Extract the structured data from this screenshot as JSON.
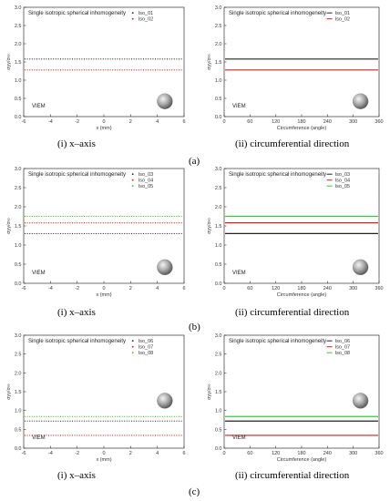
{
  "panels": [
    {
      "label": "(a)",
      "caption_i": "(i) x–axis",
      "caption_ii": "(ii) circumferential direction"
    },
    {
      "label": "(b)",
      "caption_i": "(i) x–axis",
      "caption_ii": "(ii) circumferential direction"
    },
    {
      "label": "(c)",
      "caption_i": "(i) x–axis",
      "caption_ii": "(ii) circumferential direction"
    }
  ],
  "colors": {
    "black": "#222222",
    "red": "#cc2222",
    "green": "#33cc33"
  },
  "chart_data": [
    {
      "type": "line",
      "style": "dotted",
      "title": "Single isotropic spherical inhomogeneity",
      "annotation": "VIEM",
      "xlabel": "x (mm)",
      "ylabel": "σyy/σ∞",
      "xlim": [
        -6,
        6
      ],
      "ylim": [
        0,
        3
      ],
      "xticks": [
        "-6",
        "-4",
        "-2",
        "0",
        "2",
        "4",
        "6"
      ],
      "yticks": [
        "0.0",
        "0.5",
        "1.0",
        "1.5",
        "2.0",
        "2.5",
        "3.0"
      ],
      "legend": "top-right",
      "series": [
        {
          "name": "Iso_01",
          "y": 1.58,
          "color": "#222222"
        },
        {
          "name": "Iso_02",
          "y": 1.28,
          "color": "#cc2222"
        }
      ]
    },
    {
      "type": "line",
      "style": "solid",
      "title": "Single isotropic spherical inhomogeneity",
      "annotation": "VIEM",
      "xlabel": "Circumference (angle)",
      "ylabel": "σyy/σ∞",
      "xlim": [
        0,
        360
      ],
      "ylim": [
        0,
        3
      ],
      "xticks": [
        "0",
        "60",
        "120",
        "180",
        "240",
        "300",
        "360"
      ],
      "yticks": [
        "0.0",
        "0.5",
        "1.0",
        "1.5",
        "2.0",
        "2.5",
        "3.0"
      ],
      "legend": "top-right",
      "series": [
        {
          "name": "Iso_01",
          "y": 1.58,
          "color": "#222222"
        },
        {
          "name": "Iso_02",
          "y": 1.28,
          "color": "#cc2222"
        }
      ]
    },
    {
      "type": "line",
      "style": "dotted",
      "title": "Single isotropic spherical inhomogeneity",
      "annotation": "VIEM",
      "xlabel": "x (mm)",
      "ylabel": "σyy/σ∞",
      "xlim": [
        -6,
        6
      ],
      "ylim": [
        0,
        3
      ],
      "xticks": [
        "-6",
        "-4",
        "-2",
        "0",
        "2",
        "4",
        "6"
      ],
      "yticks": [
        "0.0",
        "0.5",
        "1.0",
        "1.5",
        "2.0",
        "2.5",
        "3.0"
      ],
      "legend": "top-right",
      "series": [
        {
          "name": "Iso_03",
          "y": 1.3,
          "color": "#222222"
        },
        {
          "name": "Iso_04",
          "y": 1.58,
          "color": "#cc2222"
        },
        {
          "name": "Iso_05",
          "y": 1.75,
          "color": "#33cc33"
        }
      ]
    },
    {
      "type": "line",
      "style": "solid",
      "title": "Single isotropic spherical inhomogeneity",
      "annotation": "VIEM",
      "xlabel": "Circumference (angle)",
      "ylabel": "σyy/σ∞",
      "xlim": [
        0,
        360
      ],
      "ylim": [
        0,
        3
      ],
      "xticks": [
        "0",
        "60",
        "120",
        "180",
        "240",
        "300",
        "360"
      ],
      "yticks": [
        "0.0",
        "0.5",
        "1.0",
        "1.5",
        "2.0",
        "2.5",
        "3.0"
      ],
      "legend": "top-right",
      "series": [
        {
          "name": "Iso_03",
          "y": 1.3,
          "color": "#222222"
        },
        {
          "name": "Iso_04",
          "y": 1.58,
          "color": "#cc2222"
        },
        {
          "name": "Iso_05",
          "y": 1.75,
          "color": "#33cc33"
        }
      ]
    },
    {
      "type": "line",
      "style": "dotted",
      "title": "Single isotropic spherical inhomogeneity",
      "annotation": "VIEM",
      "xlabel": "x (mm)",
      "ylabel": "σyy/σ∞",
      "xlim": [
        -6,
        6
      ],
      "ylim": [
        0,
        3
      ],
      "xticks": [
        "-6",
        "-4",
        "-2",
        "0",
        "2",
        "4",
        "6"
      ],
      "yticks": [
        "0.0",
        "0.5",
        "1.0",
        "1.5",
        "2.0",
        "2.5",
        "3.0"
      ],
      "legend": "top-right",
      "series": [
        {
          "name": "Iso_06",
          "y": 0.72,
          "color": "#222222"
        },
        {
          "name": "Iso_07",
          "y": 0.34,
          "color": "#cc2222"
        },
        {
          "name": "Iso_08",
          "y": 0.84,
          "color": "#33cc33"
        }
      ]
    },
    {
      "type": "line",
      "style": "solid",
      "title": "Single isotropic spherical inhomogeneity",
      "annotation": "VIEM",
      "xlabel": "Circumference (angle)",
      "ylabel": "σyy/σ∞",
      "xlim": [
        0,
        360
      ],
      "ylim": [
        0,
        3
      ],
      "xticks": [
        "0",
        "60",
        "120",
        "180",
        "240",
        "300",
        "360"
      ],
      "yticks": [
        "0.0",
        "0.5",
        "1.0",
        "1.5",
        "2.0",
        "2.5",
        "3.0"
      ],
      "legend": "top-right",
      "series": [
        {
          "name": "Iso_06",
          "y": 0.72,
          "color": "#222222"
        },
        {
          "name": "Iso_07",
          "y": 0.34,
          "color": "#cc2222"
        },
        {
          "name": "Iso_08",
          "y": 0.84,
          "color": "#33cc33"
        }
      ]
    }
  ]
}
